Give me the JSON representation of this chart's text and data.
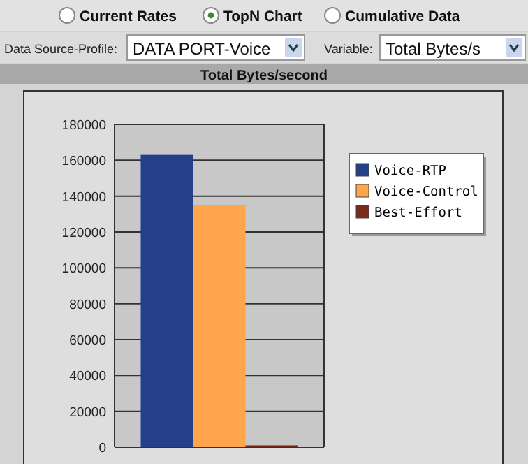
{
  "chart_data": {
    "type": "bar",
    "title": "Total Bytes/second",
    "categories": [
      null
    ],
    "series": [
      {
        "name": "Voice-RTP",
        "color": "#253f8a",
        "values": [
          163000
        ]
      },
      {
        "name": "Voice-Control",
        "color": "#ffa64d",
        "values": [
          135000
        ]
      },
      {
        "name": "Best-Effort",
        "color": "#7a2a1a",
        "values": [
          1000
        ]
      }
    ],
    "ylim": [
      0,
      180000
    ],
    "yticks": [
      0,
      20000,
      40000,
      60000,
      80000,
      100000,
      120000,
      140000,
      160000,
      180000
    ],
    "grid": "y",
    "legend": "right",
    "annotations": [
      "Current Rates",
      "TopN Chart",
      "Cumulative Data",
      "Data Source-Profile:",
      "DATA PORT-Voice",
      "Variable:",
      "Total Bytes/s"
    ]
  }
}
